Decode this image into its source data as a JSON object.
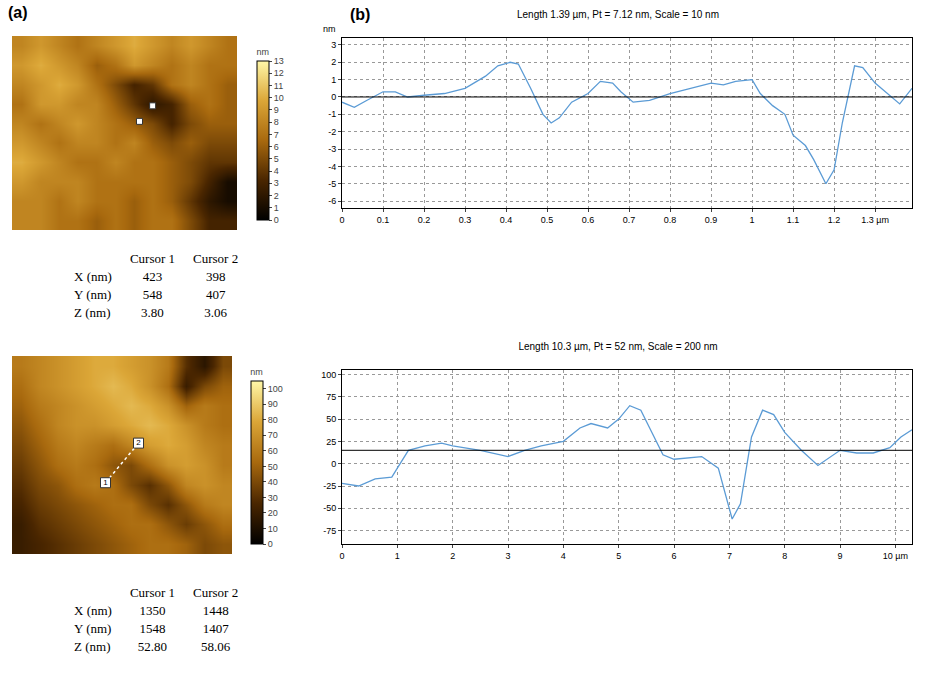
{
  "panel_labels": [
    "(a)",
    "(b)"
  ],
  "chart_data": [
    {
      "type": "heatmap",
      "tick_labels": false,
      "colorbar_title": "nm",
      "zlim": [
        0,
        13
      ],
      "zticks": [
        0,
        1,
        2,
        3,
        4,
        5,
        6,
        7,
        8,
        9,
        10,
        11,
        12,
        13
      ],
      "z": [
        [
          8,
          9,
          8,
          7,
          8,
          9,
          10,
          9,
          8,
          9,
          8,
          7
        ],
        [
          9,
          10,
          9,
          8,
          6,
          7,
          9,
          8,
          7,
          8,
          7,
          7
        ],
        [
          8,
          9,
          10,
          9,
          7,
          5,
          3,
          4,
          7,
          8,
          7,
          6
        ],
        [
          7,
          9,
          9,
          8,
          8,
          6,
          4,
          2,
          3,
          6,
          7,
          6
        ],
        [
          8,
          7,
          8,
          9,
          8,
          7,
          6,
          5,
          3,
          5,
          6,
          6
        ],
        [
          9,
          8,
          7,
          8,
          8,
          7,
          8,
          6,
          5,
          6,
          5,
          5
        ],
        [
          10,
          9,
          8,
          7,
          7,
          8,
          7,
          7,
          6,
          5,
          4,
          4
        ],
        [
          9,
          8,
          8,
          8,
          7,
          7,
          7,
          7,
          6,
          5,
          3,
          1
        ],
        [
          8,
          8,
          7,
          8,
          7,
          7,
          6,
          7,
          6,
          4,
          2,
          1
        ],
        [
          8,
          8,
          7,
          7,
          6,
          7,
          6,
          7,
          7,
          5,
          3,
          3
        ]
      ],
      "cursors": {
        "points": [
          {
            "col": 6.3,
            "row": 3.9
          },
          {
            "col": 7.0,
            "row": 3.1
          }
        ]
      }
    },
    {
      "type": "line",
      "title": "Length 1.39 µm, Pt = 7.12 nm, Scale = 10 nm",
      "y_label": "nm",
      "x": [
        0,
        0.03,
        0.06,
        0.1,
        0.13,
        0.16,
        0.2,
        0.25,
        0.3,
        0.35,
        0.38,
        0.41,
        0.43,
        0.46,
        0.49,
        0.51,
        0.53,
        0.56,
        0.6,
        0.63,
        0.66,
        0.68,
        0.71,
        0.75,
        0.8,
        0.85,
        0.9,
        0.93,
        0.96,
        1.0,
        1.02,
        1.05,
        1.08,
        1.1,
        1.13,
        1.15,
        1.18,
        1.2,
        1.22,
        1.25,
        1.27,
        1.3,
        1.33,
        1.36,
        1.39
      ],
      "values": [
        -0.3,
        -0.6,
        -0.2,
        0.3,
        0.3,
        0,
        0.1,
        0.2,
        0.5,
        1.2,
        1.8,
        2.0,
        1.9,
        0.5,
        -1.0,
        -1.5,
        -1.2,
        -0.3,
        0.2,
        0.9,
        0.8,
        0.3,
        -0.3,
        -0.2,
        0.2,
        0.5,
        0.8,
        0.7,
        0.9,
        1.0,
        0.2,
        -0.5,
        -1.0,
        -2.2,
        -2.8,
        -3.6,
        -5.0,
        -4.2,
        -1.5,
        1.8,
        1.7,
        0.8,
        0.2,
        -0.4,
        0.5
      ],
      "color": "#5b9bd5",
      "reference_line": 0,
      "grid": true,
      "xlim": [
        0,
        1.39
      ],
      "xticks": [
        0,
        0.1,
        0.2,
        0.3,
        0.4,
        0.5,
        0.6,
        0.7,
        0.8,
        0.9,
        1,
        1.1,
        1.2,
        {
          "value": 1.3,
          "label": "1.3 µm"
        }
      ],
      "ylim": [
        -6.4,
        3.4
      ],
      "yticks": [
        -6,
        -5,
        -4,
        -3,
        -2,
        -1,
        0,
        1,
        2,
        3
      ]
    },
    {
      "type": "heatmap",
      "tick_labels": false,
      "colorbar_title": "nm",
      "zlim": [
        0,
        105
      ],
      "zticks": [
        0,
        10,
        20,
        30,
        40,
        50,
        60,
        70,
        80,
        90,
        100
      ],
      "z": [
        [
          60,
          65,
          70,
          75,
          80,
          80,
          75,
          70,
          60,
          30,
          15,
          40
        ],
        [
          55,
          65,
          70,
          75,
          80,
          85,
          80,
          70,
          55,
          20,
          40,
          50
        ],
        [
          50,
          60,
          65,
          70,
          75,
          80,
          85,
          80,
          70,
          50,
          60,
          55
        ],
        [
          45,
          55,
          65,
          70,
          70,
          75,
          80,
          85,
          80,
          70,
          60,
          55
        ],
        [
          40,
          50,
          60,
          65,
          60,
          55,
          65,
          75,
          80,
          75,
          65,
          60
        ],
        [
          35,
          45,
          55,
          60,
          55,
          45,
          40,
          55,
          70,
          75,
          70,
          60
        ],
        [
          30,
          40,
          45,
          55,
          60,
          55,
          40,
          30,
          45,
          65,
          70,
          65
        ],
        [
          25,
          35,
          40,
          45,
          50,
          55,
          55,
          40,
          30,
          45,
          60,
          65
        ],
        [
          20,
          30,
          35,
          40,
          45,
          50,
          55,
          55,
          45,
          35,
          45,
          55
        ],
        [
          20,
          25,
          30,
          35,
          40,
          45,
          50,
          55,
          55,
          50,
          40,
          45
        ]
      ],
      "cursors": {
        "points": [
          {
            "col": 4.6,
            "row": 5.9,
            "label": "1"
          },
          {
            "col": 6.4,
            "row": 3.9,
            "label": "2"
          }
        ],
        "line_style": "dot"
      }
    },
    {
      "type": "line",
      "title": "Length 10.3 µm, Pt = 52 nm, Scale = 200 nm",
      "x": [
        0,
        0.3,
        0.6,
        0.9,
        1.0,
        1.2,
        1.5,
        1.8,
        2.0,
        2.5,
        3.0,
        3.3,
        3.6,
        4.0,
        4.3,
        4.5,
        4.8,
        5.0,
        5.2,
        5.4,
        5.6,
        5.8,
        6.0,
        6.5,
        6.8,
        7.05,
        7.2,
        7.4,
        7.6,
        7.8,
        8.0,
        8.3,
        8.6,
        9.0,
        9.3,
        9.6,
        9.9,
        10.1,
        10.3
      ],
      "values": [
        -22,
        -25,
        -17,
        -15,
        -5,
        15,
        20,
        23,
        20,
        15,
        8,
        15,
        20,
        25,
        40,
        45,
        40,
        50,
        65,
        60,
        35,
        10,
        5,
        8,
        -5,
        -62,
        -45,
        30,
        60,
        55,
        35,
        15,
        -2,
        15,
        12,
        12,
        18,
        30,
        38
      ],
      "color": "#5b9bd5",
      "reference_line": 15,
      "grid": true,
      "xlim": [
        0,
        10.3
      ],
      "xticks": [
        0,
        1,
        2,
        3,
        4,
        5,
        6,
        7,
        8,
        9,
        {
          "value": 10,
          "label": "10 µm"
        }
      ],
      "ylim": [
        -90,
        105
      ],
      "yticks": [
        -75,
        -50,
        -25,
        0,
        25,
        50,
        75,
        100
      ]
    }
  ],
  "tables": [
    {
      "header": [
        "",
        "Cursor 1",
        "Cursor 2"
      ],
      "rows": [
        [
          "X (nm)",
          "423",
          "398"
        ],
        [
          "Y (nm)",
          "548",
          "407"
        ],
        [
          "Z (nm)",
          "3.80",
          "3.06"
        ]
      ]
    },
    {
      "header": [
        "",
        "Cursor 1",
        "Cursor 2"
      ],
      "rows": [
        [
          "X (nm)",
          "1350",
          "1448"
        ],
        [
          "Y (nm)",
          "1548",
          "1407"
        ],
        [
          "Z (nm)",
          "52.80",
          "58.06"
        ]
      ]
    }
  ]
}
